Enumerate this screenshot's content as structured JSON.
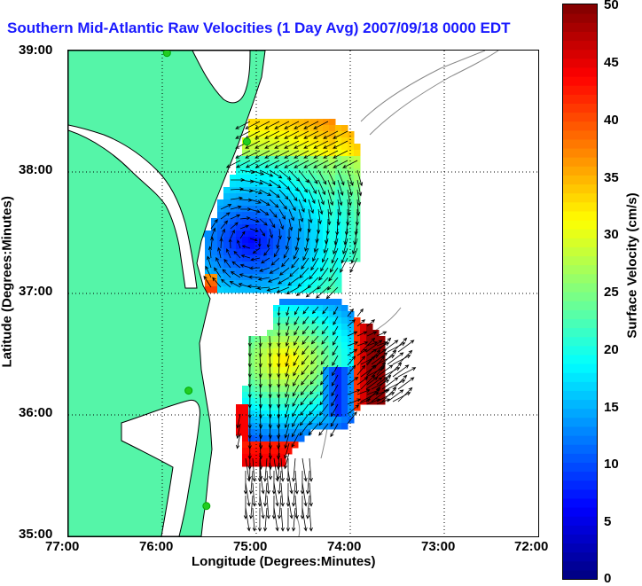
{
  "title": "Southern Mid-Atlantic Raw Velocities (1 Day Avg) 2007/09/18 0000 EDT",
  "x_axis": {
    "label": "Longitude (Degrees:Minutes)",
    "ticks": [
      "77:00",
      "76:00",
      "75:00",
      "74:00",
      "73:00",
      "72:00"
    ]
  },
  "y_axis": {
    "label": "Latitude (Degrees:Minutes)",
    "ticks": [
      "39:00",
      "38:00",
      "37:00",
      "36:00",
      "35:00"
    ]
  },
  "colorbar": {
    "label": "Surface Velocity (cm/s)",
    "ticks": [
      "50",
      "45",
      "40",
      "35",
      "30",
      "25",
      "20",
      "15",
      "10",
      "5",
      "0"
    ],
    "range": [
      0,
      50
    ],
    "colormap": "jet"
  },
  "colors": {
    "land": "#55f5a8",
    "water": "#ffffff",
    "title": "#1a1aff",
    "bathymetry": "#888888",
    "station": "#22cc22"
  },
  "map": {
    "lon_range": [
      -77,
      -72
    ],
    "lat_range": [
      35,
      39
    ],
    "grid": "dotted",
    "stations": [
      {
        "lon": -75.95,
        "lat": 38.98
      },
      {
        "lon": -75.1,
        "lat": 38.25
      },
      {
        "lon": -75.72,
        "lat": 36.2
      },
      {
        "lon": -75.53,
        "lat": 35.25
      }
    ]
  }
}
